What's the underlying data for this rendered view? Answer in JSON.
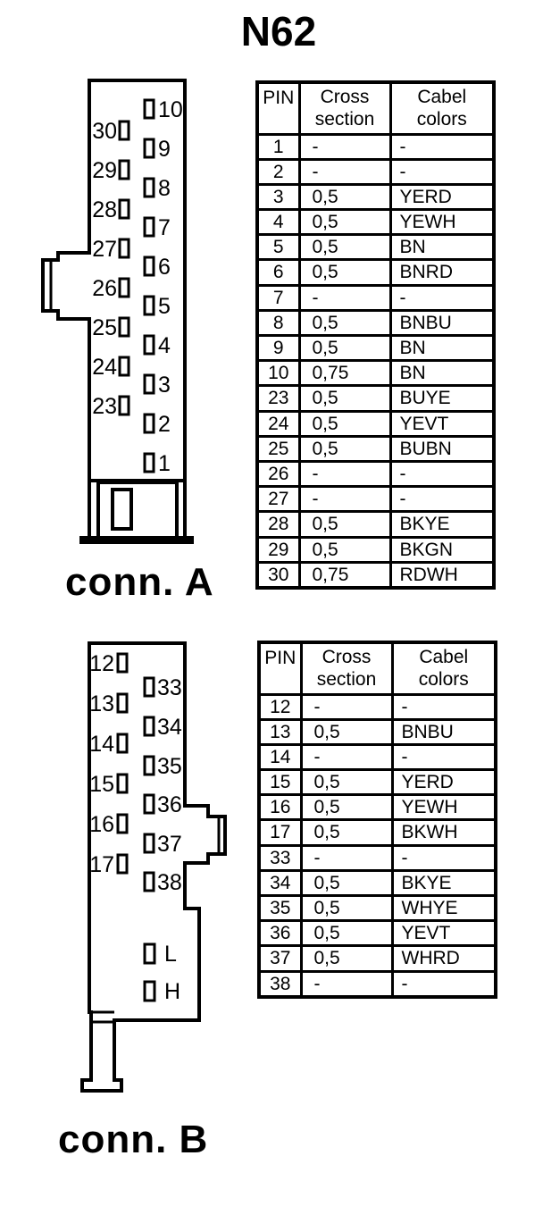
{
  "title": "N62",
  "colors": {
    "ink": "#000000",
    "paper": "#ffffff"
  },
  "connector_a": {
    "label": "conn. A",
    "left_pins": [
      "30",
      "29",
      "28",
      "27",
      "26",
      "25",
      "24",
      "23"
    ],
    "right_pins": [
      "10",
      "9",
      "8",
      "7",
      "6",
      "5",
      "4",
      "3",
      "2",
      "1"
    ]
  },
  "connector_b": {
    "label": "conn. B",
    "left_pins": [
      "12",
      "13",
      "14",
      "15",
      "16",
      "17"
    ],
    "right_pins": [
      "33",
      "34",
      "35",
      "36",
      "37",
      "38"
    ],
    "extra_pins": [
      "L",
      "H"
    ]
  },
  "table_a": {
    "headers": [
      "PIN",
      "Cross section",
      "Cabel colors"
    ],
    "rows": [
      [
        "1",
        "-",
        "-"
      ],
      [
        "2",
        "-",
        "-"
      ],
      [
        "3",
        "0,5",
        "YERD"
      ],
      [
        "4",
        "0,5",
        "YEWH"
      ],
      [
        "5",
        "0,5",
        "BN"
      ],
      [
        "6",
        "0,5",
        "BNRD"
      ],
      [
        "7",
        "-",
        "-"
      ],
      [
        "8",
        "0,5",
        "BNBU"
      ],
      [
        "9",
        "0,5",
        "BN"
      ],
      [
        "10",
        "0,75",
        "BN"
      ],
      [
        "23",
        "0,5",
        "BUYE"
      ],
      [
        "24",
        "0,5",
        "YEVT"
      ],
      [
        "25",
        "0,5",
        "BUBN"
      ],
      [
        "26",
        "-",
        "-"
      ],
      [
        "27",
        "-",
        "-"
      ],
      [
        "28",
        "0,5",
        "BKYE"
      ],
      [
        "29",
        "0,5",
        "BKGN"
      ],
      [
        "30",
        "0,75",
        "RDWH"
      ]
    ]
  },
  "table_b": {
    "headers": [
      "PIN",
      "Cross section",
      "Cabel colors"
    ],
    "rows": [
      [
        "12",
        "-",
        "-"
      ],
      [
        "13",
        "0,5",
        "BNBU"
      ],
      [
        "14",
        "-",
        "-"
      ],
      [
        "15",
        "0,5",
        "YERD"
      ],
      [
        "16",
        "0,5",
        "YEWH"
      ],
      [
        "17",
        "0,5",
        "BKWH"
      ],
      [
        "33",
        "-",
        "-"
      ],
      [
        "34",
        "0,5",
        "BKYE"
      ],
      [
        "35",
        "0,5",
        "WHYE"
      ],
      [
        "36",
        "0,5",
        "YEVT"
      ],
      [
        "37",
        "0,5",
        "WHRD"
      ],
      [
        "38",
        "-",
        "-"
      ]
    ]
  }
}
